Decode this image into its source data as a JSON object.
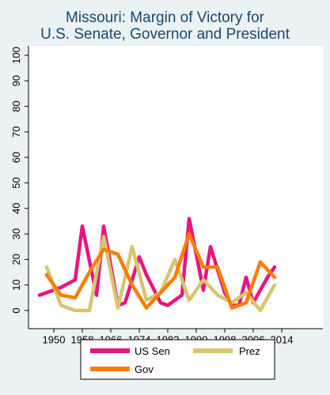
{
  "chart_data": {
    "type": "line",
    "title_lines": [
      "Missouri: Margin of Victory for",
      "U.S. Senate, Governor and President"
    ],
    "xlabel": "",
    "ylabel": "",
    "xlim": [
      1942,
      2016
    ],
    "ylim": [
      0,
      100
    ],
    "xticks": [
      1950,
      1958,
      1966,
      1974,
      1982,
      1990,
      1998,
      2006,
      2014
    ],
    "yticks": [
      0,
      10,
      20,
      30,
      40,
      50,
      60,
      70,
      80,
      90,
      100
    ],
    "grid": false,
    "legend_position": "bottom",
    "series": [
      {
        "name": "US Sen",
        "color": "#e8157f",
        "x": [
          1946,
          1952,
          1956,
          1958,
          1962,
          1964,
          1968,
          1970,
          1974,
          1976,
          1980,
          1982,
          1986,
          1988,
          1992,
          1994,
          1998,
          2000,
          2002,
          2004,
          2006,
          2010,
          2012
        ],
        "values": [
          6,
          9,
          12,
          33,
          6,
          33,
          2,
          3,
          21,
          14,
          3,
          2,
          6,
          36,
          8,
          25,
          7,
          2,
          2,
          13,
          3,
          13,
          17
        ]
      },
      {
        "name": "Prez",
        "color": "#d7c56f",
        "x": [
          1948,
          1952,
          1956,
          1960,
          1964,
          1968,
          1972,
          1976,
          1980,
          1984,
          1988,
          1992,
          1996,
          2000,
          2004,
          2008,
          2012
        ],
        "values": [
          17,
          2,
          0,
          0,
          29,
          1,
          25,
          4,
          7,
          20,
          4,
          12,
          6,
          3,
          7,
          0,
          10
        ]
      },
      {
        "name": "Gov",
        "color": "#fb7d06",
        "x": [
          1948,
          1952,
          1956,
          1960,
          1964,
          1968,
          1972,
          1976,
          1980,
          1984,
          1988,
          1992,
          1996,
          2000,
          2004,
          2008,
          2012
        ],
        "values": [
          14,
          6,
          5,
          15,
          24,
          22,
          10,
          1,
          7,
          13,
          30,
          17,
          17,
          1,
          3,
          19,
          13
        ]
      }
    ]
  }
}
